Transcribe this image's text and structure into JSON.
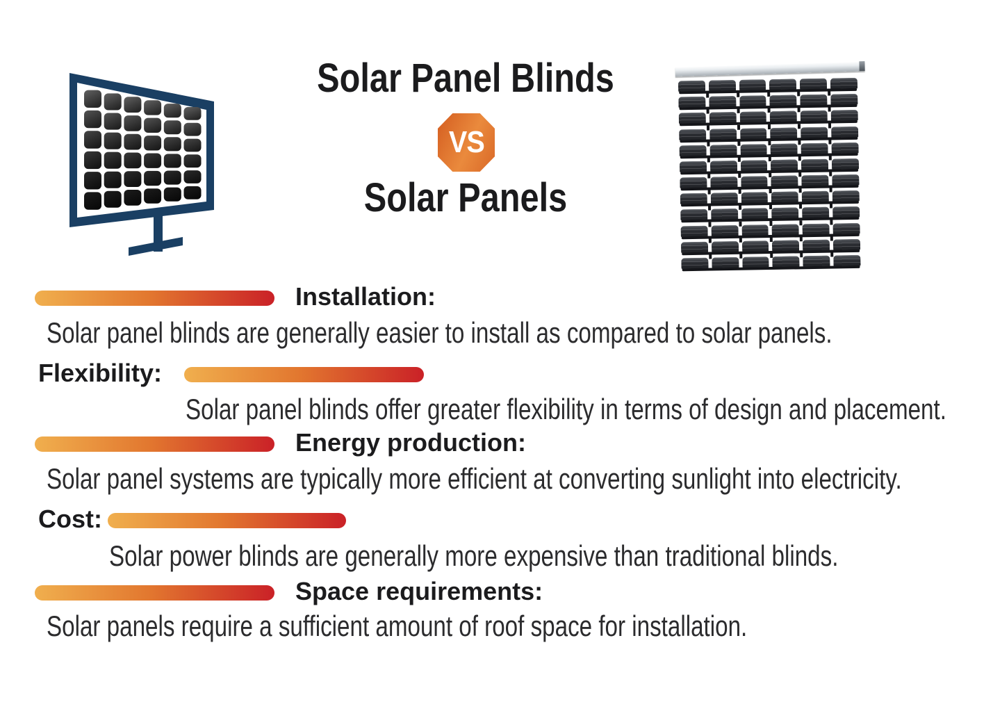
{
  "header": {
    "title_top": "Solar Panel Blinds",
    "vs_label": "VS",
    "title_bottom": "Solar Panels"
  },
  "sections": [
    {
      "label": "Installation:",
      "description": "Solar panel blinds are generally easier to install as compared to solar panels."
    },
    {
      "label": "Flexibility:",
      "description": "Solar panel blinds offer greater flexibility in terms of design and placement."
    },
    {
      "label": "Energy production:",
      "description": "Solar panel systems are typically more efficient at converting sunlight into electricity."
    },
    {
      "label": "Cost:",
      "description": "Solar power blinds are generally more expensive than traditional blinds."
    },
    {
      "label": "Space requirements:",
      "description": "Solar panels require a sufficient amount of roof space for installation."
    }
  ],
  "colors": {
    "bar_start": "#F0AF4E",
    "bar_mid": "#E2772F",
    "bar_end": "#CA2127",
    "vs_light": "#EA8A3D",
    "vs_dark": "#D45D20",
    "frame_navy": "#1A3F63",
    "heading_text": "#1B1B1D",
    "body_text": "#2B2B2D",
    "background": "#FFFFFF"
  }
}
